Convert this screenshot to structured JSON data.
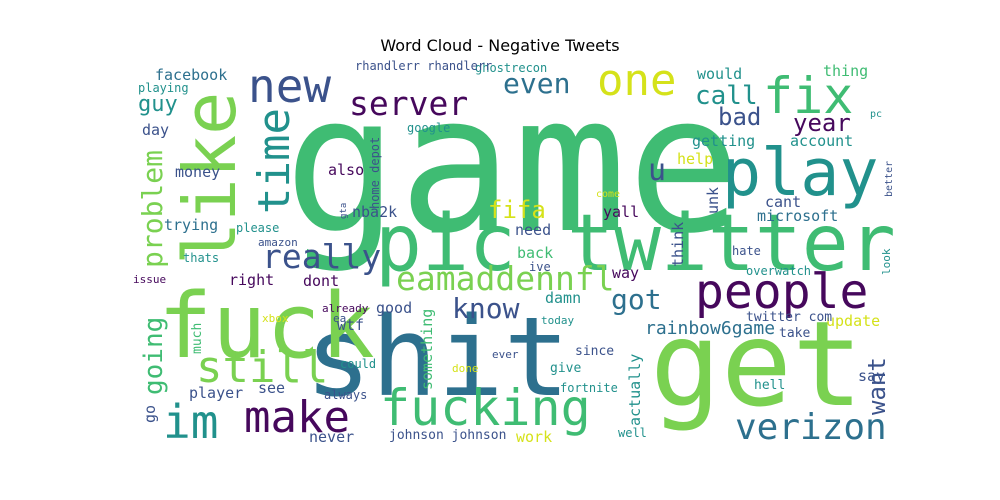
{
  "title": "Word Cloud - Negative Tweets",
  "palette": {
    "purple": "#46085c",
    "indigo": "#3b528b",
    "blue": "#2d708e",
    "teal": "#21918c",
    "green": "#3fbc73",
    "lime": "#7ad151",
    "yellow": "#d5e21a"
  },
  "words": [
    {
      "text": "game",
      "color": "green"
    },
    {
      "text": "shit",
      "color": "blue"
    },
    {
      "text": "get",
      "color": "lime"
    },
    {
      "text": "twitter",
      "color": "green"
    },
    {
      "text": "pic",
      "color": "green"
    },
    {
      "text": "fuck",
      "color": "lime"
    },
    {
      "text": "play",
      "color": "teal"
    },
    {
      "text": "like",
      "color": "lime"
    },
    {
      "text": "people",
      "color": "purple"
    },
    {
      "text": "fucking",
      "color": "green"
    },
    {
      "text": "one",
      "color": "yellow"
    },
    {
      "text": "fix",
      "color": "green"
    },
    {
      "text": "new",
      "color": "indigo"
    },
    {
      "text": "im",
      "color": "teal"
    },
    {
      "text": "still",
      "color": "lime"
    },
    {
      "text": "make",
      "color": "purple"
    },
    {
      "text": "time",
      "color": "teal"
    },
    {
      "text": "verizon",
      "color": "blue"
    },
    {
      "text": "server",
      "color": "purple"
    },
    {
      "text": "really",
      "color": "indigo"
    },
    {
      "text": "eamaddennfl",
      "color": "lime"
    },
    {
      "text": "know",
      "color": "indigo"
    },
    {
      "text": "problem",
      "color": "lime"
    },
    {
      "text": "got",
      "color": "blue"
    },
    {
      "text": "u",
      "color": "indigo"
    },
    {
      "text": "even",
      "color": "blue"
    },
    {
      "text": "going",
      "color": "green"
    },
    {
      "text": "want",
      "color": "indigo"
    },
    {
      "text": "call",
      "color": "teal"
    },
    {
      "text": "bad",
      "color": "indigo"
    },
    {
      "text": "year",
      "color": "purple"
    },
    {
      "text": "guy",
      "color": "teal"
    },
    {
      "text": "fifa",
      "color": "yellow"
    },
    {
      "text": "rainbow6game",
      "color": "blue"
    },
    {
      "text": "facebook",
      "color": "blue"
    },
    {
      "text": "would",
      "color": "teal"
    },
    {
      "text": "thing",
      "color": "green"
    },
    {
      "text": "getting",
      "color": "teal"
    },
    {
      "text": "account",
      "color": "teal"
    },
    {
      "text": "help",
      "color": "yellow"
    },
    {
      "text": "microsoft",
      "color": "blue"
    },
    {
      "text": "cant",
      "color": "indigo"
    },
    {
      "text": "yall",
      "color": "purple"
    },
    {
      "text": "need",
      "color": "indigo"
    },
    {
      "text": "think",
      "color": "indigo"
    },
    {
      "text": "unk",
      "color": "indigo"
    },
    {
      "text": "trying",
      "color": "blue"
    },
    {
      "text": "money",
      "color": "indigo"
    },
    {
      "text": "also",
      "color": "purple"
    },
    {
      "text": "day",
      "color": "indigo"
    },
    {
      "text": "back",
      "color": "green"
    },
    {
      "text": "nba2k",
      "color": "indigo"
    },
    {
      "text": "right",
      "color": "purple"
    },
    {
      "text": "dont",
      "color": "purple"
    },
    {
      "text": "way",
      "color": "purple"
    },
    {
      "text": "damn",
      "color": "teal"
    },
    {
      "text": "good",
      "color": "indigo"
    },
    {
      "text": "wtf",
      "color": "indigo"
    },
    {
      "text": "update",
      "color": "yellow"
    },
    {
      "text": "take",
      "color": "indigo"
    },
    {
      "text": "say",
      "color": "indigo"
    },
    {
      "text": "player",
      "color": "indigo"
    },
    {
      "text": "see",
      "color": "indigo"
    },
    {
      "text": "never",
      "color": "indigo"
    },
    {
      "text": "work",
      "color": "yellow"
    },
    {
      "text": "actually",
      "color": "teal"
    },
    {
      "text": "something",
      "color": "green"
    },
    {
      "text": "much",
      "color": "green"
    },
    {
      "text": "go",
      "color": "indigo"
    },
    {
      "text": "home depot",
      "color": "indigo"
    },
    {
      "text": "johnson johnson",
      "color": "indigo"
    },
    {
      "text": "twitter com",
      "color": "indigo"
    },
    {
      "text": "fortnite",
      "color": "teal"
    },
    {
      "text": "give",
      "color": "teal"
    },
    {
      "text": "since",
      "color": "indigo"
    },
    {
      "text": "always",
      "color": "indigo"
    },
    {
      "text": "could",
      "color": "teal"
    },
    {
      "text": "ive",
      "color": "indigo"
    },
    {
      "text": "already",
      "color": "purple"
    },
    {
      "text": "ea",
      "color": "indigo"
    },
    {
      "text": "hell",
      "color": "teal"
    },
    {
      "text": "well",
      "color": "teal"
    },
    {
      "text": "playing",
      "color": "teal"
    },
    {
      "text": "please",
      "color": "teal"
    },
    {
      "text": "amazon",
      "color": "indigo"
    },
    {
      "text": "thats",
      "color": "teal"
    },
    {
      "text": "issue",
      "color": "purple"
    },
    {
      "text": "xbox",
      "color": "yellow"
    },
    {
      "text": "today",
      "color": "teal"
    },
    {
      "text": "ever",
      "color": "indigo"
    },
    {
      "text": "done",
      "color": "yellow"
    },
    {
      "text": "google",
      "color": "teal"
    },
    {
      "text": "come",
      "color": "yellow"
    },
    {
      "text": "gta",
      "color": "indigo"
    },
    {
      "text": "hate",
      "color": "indigo"
    },
    {
      "text": "overwatch",
      "color": "teal"
    },
    {
      "text": "look",
      "color": "teal"
    },
    {
      "text": "better",
      "color": "indigo"
    },
    {
      "text": "pc",
      "color": "teal"
    },
    {
      "text": "ghostrecon",
      "color": "teal"
    },
    {
      "text": "rhandlerr rhandlerr",
      "color": "indigo"
    }
  ]
}
